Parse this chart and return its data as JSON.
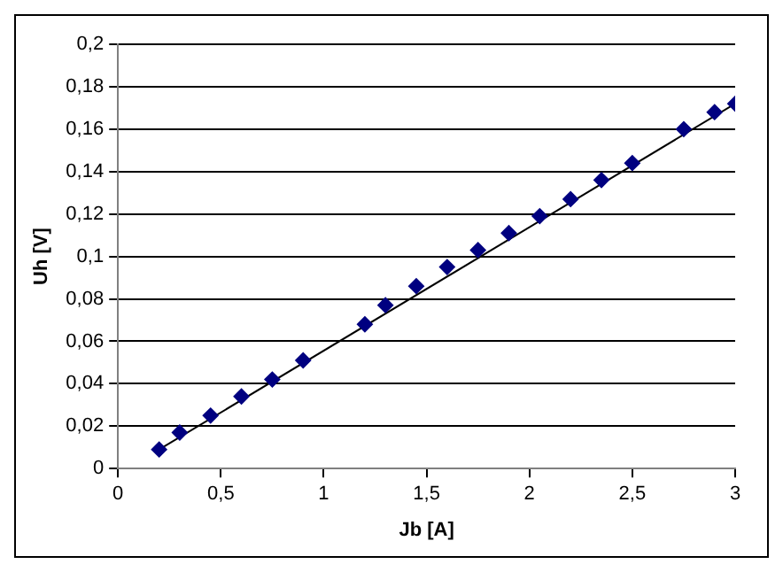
{
  "chart_data": {
    "type": "scatter",
    "xlabel": "Jb [A]",
    "ylabel": "Uh [V]",
    "xlim": [
      0,
      3
    ],
    "ylim": [
      0,
      0.2
    ],
    "xticks": [
      0,
      {
        "value": 0.5,
        "label": "0,5"
      },
      1,
      {
        "value": 1.5,
        "label": "1,5"
      },
      2,
      {
        "value": 2.5,
        "label": "2,5"
      },
      3
    ],
    "yticks": [
      0,
      {
        "value": 0.02,
        "label": "0,02"
      },
      {
        "value": 0.04,
        "label": "0,04"
      },
      {
        "value": 0.06,
        "label": "0,06"
      },
      {
        "value": 0.08,
        "label": "0,08"
      },
      {
        "value": 0.1,
        "label": "0,1"
      },
      {
        "value": 0.12,
        "label": "0,12"
      },
      {
        "value": 0.14,
        "label": "0,14"
      },
      {
        "value": 0.16,
        "label": "0,16"
      },
      {
        "value": 0.18,
        "label": "0,18"
      },
      {
        "value": 0.2,
        "label": "0,2"
      }
    ],
    "grid": "y",
    "legend": false,
    "marker": "diamond",
    "series": [
      {
        "color": "#000080",
        "x": [
          0.2,
          0.3,
          0.45,
          0.6,
          0.75,
          0.9,
          1.2,
          1.3,
          1.45,
          1.6,
          1.75,
          1.9,
          2.05,
          2.2,
          2.35,
          2.5,
          2.75,
          2.9,
          3.0
        ],
        "values": [
          0.009,
          0.017,
          0.025,
          0.034,
          0.042,
          0.051,
          0.068,
          0.077,
          0.086,
          0.095,
          0.103,
          0.111,
          0.119,
          0.127,
          0.136,
          0.144,
          0.16,
          0.168,
          0.172
        ]
      },
      {
        "type": "line",
        "marker": "none",
        "color": "#000000",
        "x": [
          0.2,
          3.0
        ],
        "values": [
          0.009,
          0.172
        ]
      }
    ]
  }
}
